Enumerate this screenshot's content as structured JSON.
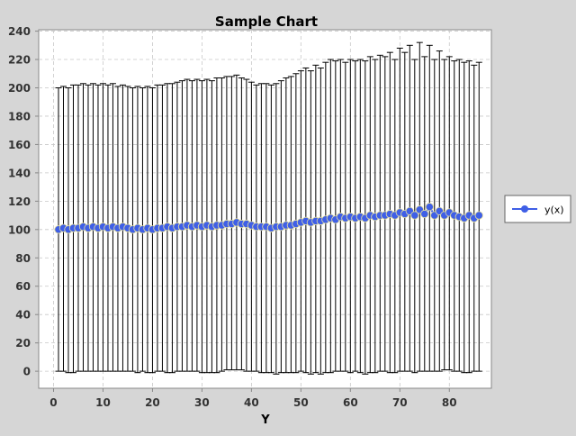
{
  "chart_data": {
    "type": "line",
    "title": "Sample Chart",
    "xlabel": "Y",
    "ylabel": "",
    "xlim": [
      -3,
      88.5
    ],
    "ylim": [
      -12,
      241
    ],
    "x_ticks": [
      0,
      10,
      20,
      30,
      40,
      50,
      60,
      70,
      80
    ],
    "y_ticks": [
      0,
      20,
      40,
      60,
      80,
      100,
      120,
      140,
      160,
      180,
      200,
      220,
      240
    ],
    "grid": true,
    "legend_position": "right",
    "series": [
      {
        "name": "y(x)",
        "color": "#3f5fe6",
        "marker": "circle",
        "error_bars": true,
        "x": [
          1,
          2,
          3,
          4,
          5,
          6,
          7,
          8,
          9,
          10,
          11,
          12,
          13,
          14,
          15,
          16,
          17,
          18,
          19,
          20,
          21,
          22,
          23,
          24,
          25,
          26,
          27,
          28,
          29,
          30,
          31,
          32,
          33,
          34,
          35,
          36,
          37,
          38,
          39,
          40,
          41,
          42,
          43,
          44,
          45,
          46,
          47,
          48,
          49,
          50,
          51,
          52,
          53,
          54,
          55,
          56,
          57,
          58,
          59,
          60,
          61,
          62,
          63,
          64,
          65,
          66,
          67,
          68,
          69,
          70,
          71,
          72,
          73,
          74,
          75,
          76,
          77,
          78,
          79,
          80,
          81,
          82,
          83,
          84,
          85,
          86
        ],
        "y": [
          100,
          101,
          100,
          101,
          101,
          102,
          101,
          102,
          101,
          102,
          101,
          102,
          101,
          102,
          101,
          100,
          101,
          100,
          101,
          100,
          101,
          101,
          102,
          101,
          102,
          102,
          103,
          102,
          103,
          102,
          103,
          102,
          103,
          103,
          104,
          104,
          105,
          104,
          104,
          103,
          102,
          102,
          102,
          101,
          102,
          102,
          103,
          103,
          104,
          105,
          106,
          105,
          106,
          106,
          107,
          108,
          107,
          109,
          108,
          109,
          108,
          109,
          108,
          110,
          109,
          110,
          110,
          111,
          110,
          112,
          111,
          113,
          110,
          114,
          111,
          116,
          110,
          113,
          110,
          112,
          110,
          109,
          108,
          110,
          108,
          110
        ],
        "err_low": [
          0,
          0,
          -1,
          -1,
          0,
          0,
          0,
          0,
          0,
          0,
          0,
          0,
          0,
          0,
          0,
          0,
          -1,
          0,
          -1,
          -1,
          0,
          0,
          -1,
          -1,
          0,
          0,
          0,
          0,
          0,
          -1,
          -1,
          -1,
          -1,
          0,
          1,
          1,
          1,
          1,
          0,
          0,
          0,
          -1,
          -1,
          -1,
          -2,
          -1,
          -1,
          -1,
          -1,
          0,
          -1,
          -2,
          -1,
          -2,
          -1,
          -1,
          0,
          0,
          0,
          -1,
          0,
          -1,
          -2,
          -1,
          -1,
          0,
          0,
          -1,
          -1,
          0,
          0,
          0,
          -1,
          0,
          0,
          0,
          0,
          0,
          1,
          1,
          0,
          0,
          -1,
          -1,
          0,
          0
        ],
        "err_high": [
          200,
          201,
          200,
          202,
          202,
          203,
          202,
          203,
          202,
          203,
          202,
          203,
          201,
          202,
          201,
          200,
          201,
          200,
          201,
          200,
          202,
          202,
          203,
          203,
          204,
          205,
          206,
          205,
          206,
          205,
          206,
          205,
          207,
          207,
          208,
          208,
          209,
          207,
          206,
          204,
          202,
          203,
          203,
          202,
          203,
          205,
          207,
          208,
          210,
          212,
          214,
          212,
          216,
          214,
          218,
          220,
          219,
          220,
          218,
          220,
          219,
          220,
          219,
          222,
          220,
          223,
          222,
          225,
          220,
          228,
          225,
          230,
          220,
          232,
          222,
          230,
          220,
          226,
          220,
          222,
          219,
          220,
          218,
          219,
          216,
          218
        ]
      }
    ]
  }
}
